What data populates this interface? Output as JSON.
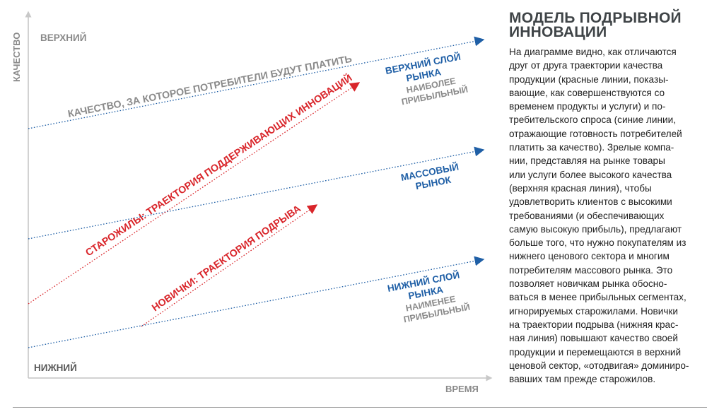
{
  "axes": {
    "y_title": "КАЧЕСТВО",
    "x_title": "ВРЕМЯ",
    "y_top_label": "ВЕРХНИЙ",
    "y_bottom_label": "НИЖНИЙ"
  },
  "trajectories": {
    "customer_demand_label": "КАЧЕСТВО, ЗА КОТОРОЕ ПОТРЕБИТЕЛИ БУДУТ ПЛАТИТЬ",
    "incumbents_label": "СТАРОЖИЛЫ: ТРАЕКТОРИЯ ПОДДЕРЖИВАЮЩИХ ИННОВАЦИЙ",
    "entrants_label": "НОВИЧКИ: ТРАЕКТОРИЯ ПОДРЫВА"
  },
  "tiers": {
    "upper_title_1": "ВЕРХНИЙ СЛОЙ",
    "upper_title_2": "РЫНКА",
    "upper_note_1": "НАИБОЛЕЕ",
    "upper_note_2": "ПРИБЫЛЬНЫЙ",
    "mass_title_1": "МАССОВЫЙ",
    "mass_title_2": "РЫНОК",
    "lower_title_1": "НИЖНИЙ СЛОЙ",
    "lower_title_2": "РЫНКА",
    "lower_note_1": "НАИМЕНЕЕ",
    "lower_note_2": "ПРИБЫЛЬНЫЙ"
  },
  "sidebar": {
    "title_line_1": "МОДЕЛЬ ПОДРЫВНОЙ",
    "title_line_2": "ИННОВАЦИИ",
    "body_lines": [
      "На диаграмме видно, как отличаются",
      "друг от друга траектории качества",
      "продукции (красные линии, показы-",
      "вающие, как совершенствуются со",
      "временем продукты и услуги) и по-",
      "требительского спроса (синие линии,",
      "отражающие готовность потребителей",
      "платить за качество). Зрелые компа-",
      "нии, представляя на рынке товары",
      "или услуги более высокого качества",
      "(верхняя красная линия), чтобы",
      "удовлетворить клиентов с высокими",
      "требованиями (и обеспечивающих",
      "самую высокую прибыль), предлагают",
      "больше того, что нужно покупателям из",
      "нижнего ценового сектора и многим",
      "потребителям массового рынка. Это",
      "позволяет новичкам рынка обосно-",
      "ваться в менее прибыльных сегментах,",
      "игнорируемых старожилами. Новички",
      "на траектории подрыва (нижняя крас-",
      "ная линия) повышают качество своей",
      "продукции и перемещаются в верхний",
      "ценовой сектор, «отодвигая» доминиро-",
      "вавших там прежде старожилов."
    ]
  },
  "colors": {
    "axis": "#b8b8b8",
    "blue": "#1f5fa6",
    "red": "#d9252a",
    "gray_text": "#8a8a8a",
    "dark_text": "#4a4f52"
  }
}
